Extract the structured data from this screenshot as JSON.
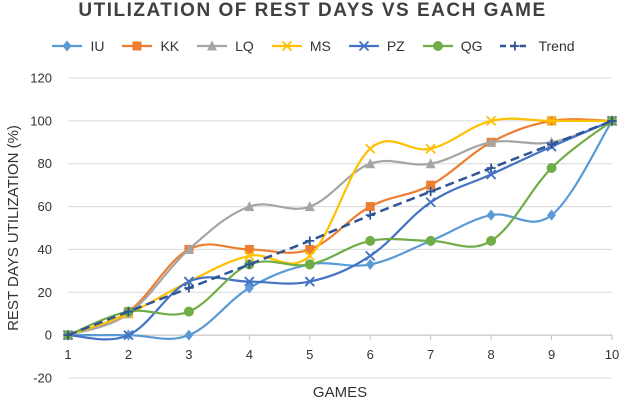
{
  "chart_data": {
    "type": "line",
    "title": "UTILIZATION OF REST DAYS VS EACH GAME",
    "xlabel": "GAMES",
    "ylabel": "REST DAYS UTILIZATION (%)",
    "x": [
      1,
      2,
      3,
      4,
      5,
      6,
      7,
      8,
      9,
      10
    ],
    "xlim": [
      1,
      10
    ],
    "ylim": [
      -20,
      120
    ],
    "yticks": [
      -20,
      0,
      20,
      40,
      60,
      80,
      100,
      120
    ],
    "grid": "horizontal",
    "legend_position": "top",
    "series": [
      {
        "name": "IU",
        "color": "#5B9BD5",
        "marker": "diamond",
        "dash": false,
        "values": [
          0,
          0,
          0,
          22,
          33,
          33,
          44,
          56,
          56,
          100
        ]
      },
      {
        "name": "KK",
        "color": "#ED7D31",
        "marker": "square",
        "dash": false,
        "values": [
          0,
          11,
          40,
          40,
          40,
          60,
          70,
          90,
          100,
          100
        ]
      },
      {
        "name": "LQ",
        "color": "#A5A5A5",
        "marker": "triangle",
        "dash": false,
        "values": [
          0,
          10,
          40,
          60,
          60,
          80,
          80,
          90,
          90,
          100
        ]
      },
      {
        "name": "MS",
        "color": "#FFC000",
        "marker": "x",
        "dash": false,
        "values": [
          0,
          10,
          25,
          37,
          37,
          87,
          87,
          100,
          100,
          100
        ]
      },
      {
        "name": "PZ",
        "color": "#4472C4",
        "marker": "x",
        "dash": false,
        "values": [
          0,
          0,
          25,
          25,
          25,
          37,
          62,
          75,
          88,
          100
        ]
      },
      {
        "name": "QG",
        "color": "#70AD47",
        "marker": "circle",
        "dash": false,
        "values": [
          0,
          11,
          11,
          33,
          33,
          44,
          44,
          44,
          78,
          100
        ]
      },
      {
        "name": "Trend",
        "color": "#2F5597",
        "marker": "plus",
        "dash": true,
        "values": [
          0,
          11,
          22,
          33,
          44,
          56,
          67,
          78,
          89,
          100
        ]
      }
    ]
  }
}
